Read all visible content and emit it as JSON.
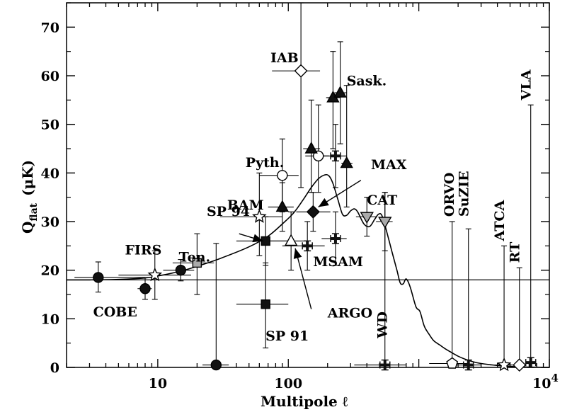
{
  "chart_data": {
    "type": "scatter",
    "title": "",
    "xlabel": "Multipole ℓ",
    "ylabel": "Q",
    "ylabel_sub": "flat",
    "ylabel_unit": "(μK)",
    "x_scale": "log",
    "xlim": [
      2,
      10000
    ],
    "ylim": [
      0,
      75
    ],
    "x_ticks": [
      10,
      100
    ],
    "x_tick_labels": [
      "10",
      "100"
    ],
    "x_end_label_base": "10",
    "x_end_label_exp": "4",
    "y_ticks": [
      0,
      10,
      20,
      30,
      40,
      50,
      60,
      70
    ],
    "y_tick_labels": [
      "0",
      "10",
      "20",
      "30",
      "40",
      "50",
      "60",
      "70"
    ],
    "reference_line_y": 18,
    "model_curve": [
      [
        2,
        18
      ],
      [
        3,
        18
      ],
      [
        5,
        18.1
      ],
      [
        8,
        18.4
      ],
      [
        10,
        18.8
      ],
      [
        15,
        19.8
      ],
      [
        20,
        20.8
      ],
      [
        30,
        22.4
      ],
      [
        50,
        24.8
      ],
      [
        70,
        27
      ],
      [
        90,
        29.5
      ],
      [
        110,
        31.8
      ],
      [
        130,
        34.5
      ],
      [
        150,
        37
      ],
      [
        170,
        38.8
      ],
      [
        190,
        39.6
      ],
      [
        205,
        39.4
      ],
      [
        220,
        37.8
      ],
      [
        240,
        34.5
      ],
      [
        260,
        31.5
      ],
      [
        280,
        31.3
      ],
      [
        300,
        32.2
      ],
      [
        320,
        32.6
      ],
      [
        340,
        32
      ],
      [
        380,
        29.5
      ],
      [
        420,
        29
      ],
      [
        460,
        30.5
      ],
      [
        490,
        31.5
      ],
      [
        520,
        31.3
      ],
      [
        560,
        28.5
      ],
      [
        620,
        24
      ],
      [
        680,
        20
      ],
      [
        720,
        17.4
      ],
      [
        760,
        17.2
      ],
      [
        800,
        18.2
      ],
      [
        860,
        16.5
      ],
      [
        950,
        12.5
      ],
      [
        1020,
        11.5
      ],
      [
        1100,
        8.5
      ],
      [
        1200,
        6.8
      ],
      [
        1300,
        5.5
      ],
      [
        1450,
        4.6
      ],
      [
        1600,
        3.8
      ],
      [
        2000,
        2.3
      ],
      [
        2500,
        1.3
      ],
      [
        3000,
        0.8
      ],
      [
        4000,
        0.4
      ],
      [
        5000,
        0.2
      ],
      [
        6000,
        0.1
      ],
      [
        8000,
        0.05
      ],
      [
        10000,
        0
      ]
    ],
    "experiments": [
      {
        "label": "COBE",
        "label_pos": [
          3.2,
          10.5
        ],
        "points": [
          {
            "x": 3.5,
            "y": 18.5,
            "xerr": [
              2.3,
              8
            ],
            "yerr": [
              15.5,
              21.7
            ],
            "marker": "circle",
            "fill": "#111"
          },
          {
            "x": 8,
            "y": 16.2,
            "xerr": [
              7,
              9
            ],
            "yerr": [
              14,
              18.5
            ],
            "marker": "circle",
            "fill": "#111"
          },
          {
            "x": 15,
            "y": 20,
            "xerr": [
              11,
              19
            ],
            "yerr": [
              17.8,
              22.2
            ],
            "marker": "circle",
            "fill": "#111"
          },
          {
            "x": 28,
            "y": 0.5,
            "xerr": [
              22,
              35
            ],
            "yerr": [
              0,
              25.5
            ],
            "marker": "circle",
            "fill": "#111"
          }
        ]
      },
      {
        "label": "FIRS",
        "label_pos": [
          5.6,
          23.2
        ],
        "points": [
          {
            "x": 9.5,
            "y": 19,
            "xerr": [
              5,
              18
            ],
            "yerr": [
              14,
              24
            ],
            "marker": "star",
            "fill": "#fff"
          }
        ]
      },
      {
        "label": "Ten.",
        "label_pos": [
          14.5,
          21.8
        ],
        "points": [
          {
            "x": 20,
            "y": 21.5,
            "xerr": [
              13,
              27
            ],
            "yerr": [
              15,
              27.5
            ],
            "marker": "square",
            "fill": "#aaa"
          }
        ]
      },
      {
        "label": "SP 94",
        "label_pos": [
          23.7,
          31.2
        ],
        "points": [
          {
            "x": 67,
            "y": 26,
            "xerr": [
              40,
              100
            ],
            "yerr": [
              21,
              31
            ],
            "marker": "square",
            "fill": "#111"
          }
        ]
      },
      {
        "label": "SP 91",
        "label_pos": [
          67,
          5.5
        ],
        "points": [
          {
            "x": 67,
            "y": 13,
            "xerr": [
              40,
              100
            ],
            "yerr": [
              4,
              21.5
            ],
            "marker": "square",
            "fill": "#111"
          }
        ]
      },
      {
        "label": "BAM",
        "label_pos": [
          34,
          32.5
        ],
        "points": [
          {
            "x": 60,
            "y": 31,
            "xerr": [
              30,
              90
            ],
            "yerr": [
              23,
              40
            ],
            "marker": "star",
            "fill": "#fff"
          }
        ]
      },
      {
        "label": "Pyth.",
        "label_pos": [
          47,
          41.2
        ],
        "points": [
          {
            "x": 90,
            "y": 39.5,
            "xerr": [
              60,
              120
            ],
            "yerr": [
              32,
              47
            ],
            "marker": "circle",
            "fill": "#fff"
          },
          {
            "x": 170,
            "y": 43.5,
            "xerr": [
              135,
              205
            ],
            "yerr": [
              36,
              54
            ],
            "marker": "circle",
            "fill": "#fff"
          }
        ]
      },
      {
        "label": "IAB",
        "label_pos": [
          73,
          62.8
        ],
        "points": [
          {
            "x": 125,
            "y": 61,
            "xerr": [
              75,
              175
            ],
            "yerr": [
              37,
              75
            ],
            "marker": "diamond",
            "fill": "#fff"
          }
        ]
      },
      {
        "label": "Sask.",
        "label_pos": [
          280,
          58
        ],
        "points": [
          {
            "x": 90,
            "y": 33,
            "xerr": [
              70,
              110
            ],
            "yerr": [
              28,
              38
            ],
            "marker": "triangle",
            "fill": "#111"
          },
          {
            "x": 150,
            "y": 45,
            "xerr": [
              130,
              175
            ],
            "yerr": [
              36,
              55
            ],
            "marker": "triangle",
            "fill": "#111"
          },
          {
            "x": 220,
            "y": 55.5,
            "xerr": [
              195,
              250
            ],
            "yerr": [
              45,
              65
            ],
            "marker": "triangle",
            "fill": "#111"
          },
          {
            "x": 250,
            "y": 56.5,
            "xerr": [
              225,
              280
            ],
            "yerr": [
              46,
              67
            ],
            "marker": "triangle",
            "fill": "#111"
          },
          {
            "x": 280,
            "y": 42,
            "xerr": [
              255,
              310
            ],
            "yerr": [
              33,
              58
            ],
            "marker": "triangle",
            "fill": "#111"
          }
        ]
      },
      {
        "label": "ARGO",
        "label_pos": [
          200,
          10.3
        ],
        "points": [
          {
            "x": 105,
            "y": 26,
            "xerr": [
              70,
              140
            ],
            "yerr": [
              20,
              32
            ],
            "marker": "triangle",
            "fill": "#fff"
          }
        ]
      },
      {
        "label": "MAX",
        "label_pos": [
          430,
          40.8
        ],
        "points": [
          {
            "x": 155,
            "y": 32,
            "xerr": [
              115,
              210
            ],
            "yerr": [
              28,
              36
            ],
            "marker": "diamond",
            "fill": "#111"
          }
        ]
      },
      {
        "label": "MSAM",
        "label_pos": [
          155,
          20.8
        ],
        "points": [
          {
            "x": 140,
            "y": 25,
            "xerr": [
              90,
              190
            ],
            "yerr": [
              20,
              30
            ],
            "marker": "cross",
            "fill": "#111"
          },
          {
            "x": 230,
            "y": 43.5,
            "xerr": [
              180,
              280
            ],
            "yerr": [
              37,
              50
            ],
            "marker": "cross",
            "fill": "#111"
          },
          {
            "x": 230,
            "y": 26.5,
            "xerr": [
              180,
              280
            ],
            "yerr": [
              21,
              32
            ],
            "marker": "cross",
            "fill": "#111"
          }
        ]
      },
      {
        "label": "CAT",
        "label_pos": [
          400,
          33.5
        ],
        "points": [
          {
            "x": 400,
            "y": 31,
            "xerr": [
              330,
              480
            ],
            "yerr": [
              27,
              35
            ],
            "marker": "triangle-down",
            "fill": "#aaa"
          },
          {
            "x": 550,
            "y": 30,
            "xerr": [
              470,
              630
            ],
            "yerr": [
              24,
              36
            ],
            "marker": "triangle-down",
            "fill": "#aaa"
          }
        ]
      },
      {
        "label": "WD",
        "label_pos": [
          570,
          6
        ],
        "label_vertical": true,
        "points": [
          {
            "x": 550,
            "y": 0.5,
            "xerr": [
              320,
              800
            ],
            "yerr": [
              0,
              36
            ],
            "marker": "cross",
            "fill": "#111"
          }
        ]
      },
      {
        "label": "ORVO",
        "label_pos": [
          1850,
          31
        ],
        "label_vertical": true,
        "points": [
          {
            "x": 1800,
            "y": 0.8,
            "xerr": [
              1200,
              2400
            ],
            "yerr": [
              0,
              30
            ],
            "marker": "pentagon",
            "fill": "#fff"
          }
        ]
      },
      {
        "label": "SuZIE",
        "label_pos": [
          2400,
          31
        ],
        "label_vertical": true,
        "points": [
          {
            "x": 2400,
            "y": 0.5,
            "xerr": [
              1900,
              3000
            ],
            "yerr": [
              0,
              28.5
            ],
            "marker": "cross",
            "fill": "#111"
          }
        ]
      },
      {
        "label": "ATCA",
        "label_pos": [
          4500,
          26
        ],
        "label_vertical": true,
        "points": [
          {
            "x": 4500,
            "y": 0.5,
            "xerr": [
              3500,
              5500
            ],
            "yerr": [
              0,
              25
            ],
            "marker": "star",
            "fill": "#fff"
          }
        ]
      },
      {
        "label": "RT",
        "label_pos": [
          5900,
          21.5
        ],
        "label_vertical": true,
        "points": [
          {
            "x": 5900,
            "y": 0.5,
            "xerr": [
              5200,
              6600
            ],
            "yerr": [
              0,
              20.5
            ],
            "marker": "diamond",
            "fill": "#fff"
          }
        ]
      },
      {
        "label": "VLA",
        "label_pos": [
          7200,
          55
        ],
        "label_vertical": true,
        "points": [
          {
            "x": 7200,
            "y": 1,
            "xerr": [
              6700,
              7700
            ],
            "yerr": [
              0,
              54
            ],
            "marker": "cross",
            "fill": "#111"
          }
        ]
      }
    ],
    "arrows": [
      {
        "for": "SP 94",
        "from": [
          42,
          27.5
        ],
        "to": [
          64,
          26
        ]
      },
      {
        "for": "MAX",
        "from": [
          360,
          38.5
        ],
        "to": [
          170,
          33
        ]
      },
      {
        "for": "ARGO",
        "from": [
          150,
          12
        ],
        "to": [
          113,
          24.5
        ]
      }
    ]
  }
}
